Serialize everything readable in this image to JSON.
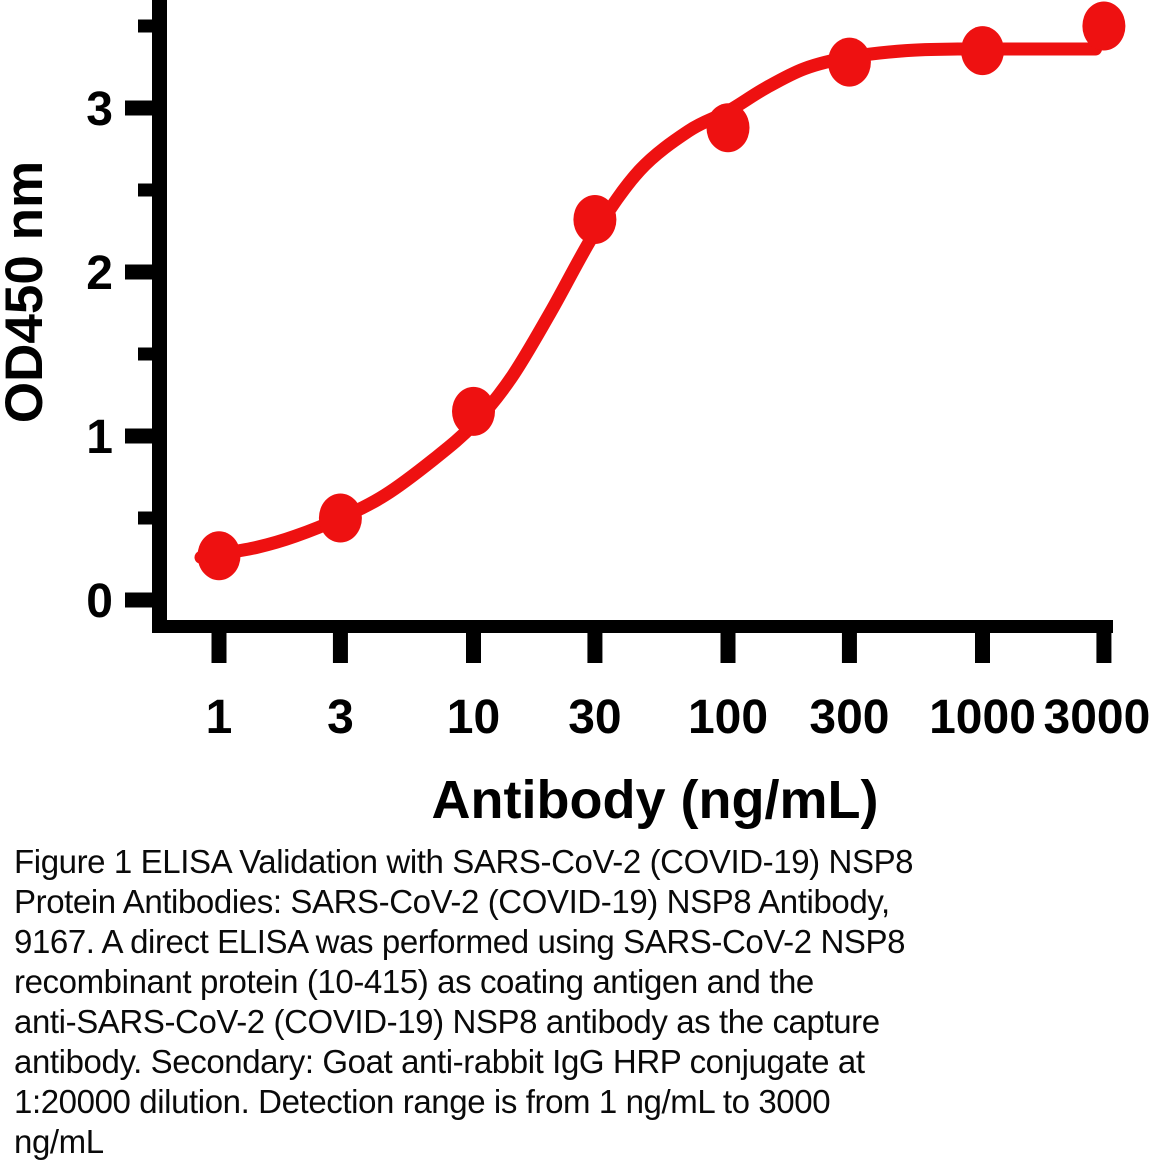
{
  "figure": {
    "caption": "Figure 1 ELISA Validation with SARS-CoV-2 (COVID-19) NSP8\nProtein Antibodies: SARS-CoV-2 (COVID-19) NSP8 Antibody,\n9167. A direct ELISA was performed using SARS-CoV-2 NSP8\nrecombinant protein (10-415) as coating antigen and the\nanti-SARS-CoV-2 (COVID-19) NSP8 antibody as the capture\nantibody. Secondary: Goat anti-rabbit IgG HRP conjugate at\n1:20000 dilution. Detection range is from 1 ng/mL to 3000\nng/mL"
  },
  "chart_data": {
    "type": "scatter",
    "title": "",
    "xlabel": "Antibody (ng/mL)",
    "ylabel": "OD450 nm",
    "x_scale": "log10",
    "grid": false,
    "legend": "none",
    "x_ticks": [
      1,
      3,
      10,
      30,
      100,
      300,
      1000,
      3000
    ],
    "x_tick_labels": [
      "1",
      "3",
      "10",
      "30",
      "100",
      "300",
      "1000",
      "3000"
    ],
    "y_ticks": [
      0,
      1,
      2,
      3
    ],
    "y_tick_labels": [
      "0",
      "1",
      "2",
      "3"
    ],
    "y_minor_ticks": [
      0.5,
      1.5,
      2.5,
      3.5
    ],
    "xlim": [
      0.85,
      3000
    ],
    "ylim": [
      0,
      3.66
    ],
    "series": [
      {
        "name": "SARS-CoV-2 (COVID-19) NSP8 Antibody, 9167",
        "x": [
          1,
          3,
          10,
          30,
          100,
          300,
          1000,
          3000
        ],
        "y": [
          0.27,
          0.5,
          1.15,
          2.32,
          2.88,
          3.28,
          3.35,
          3.5
        ]
      }
    ],
    "fit_curve": {
      "x": [
        0.85,
        1,
        1.4,
        2,
        3,
        4.5,
        7,
        10,
        14,
        20,
        30,
        45,
        70,
        100,
        140,
        200,
        300,
        500,
        800,
        1200,
        2780
      ],
      "y": [
        0.26,
        0.28,
        0.32,
        0.39,
        0.5,
        0.64,
        0.86,
        1.07,
        1.35,
        1.75,
        2.24,
        2.62,
        2.86,
        2.98,
        3.12,
        3.24,
        3.31,
        3.35,
        3.36,
        3.36,
        3.36
      ]
    },
    "marker_color": "#EE1111",
    "line_color": "#EE1111",
    "axis_color": "#000000",
    "label_color": "#000000"
  }
}
